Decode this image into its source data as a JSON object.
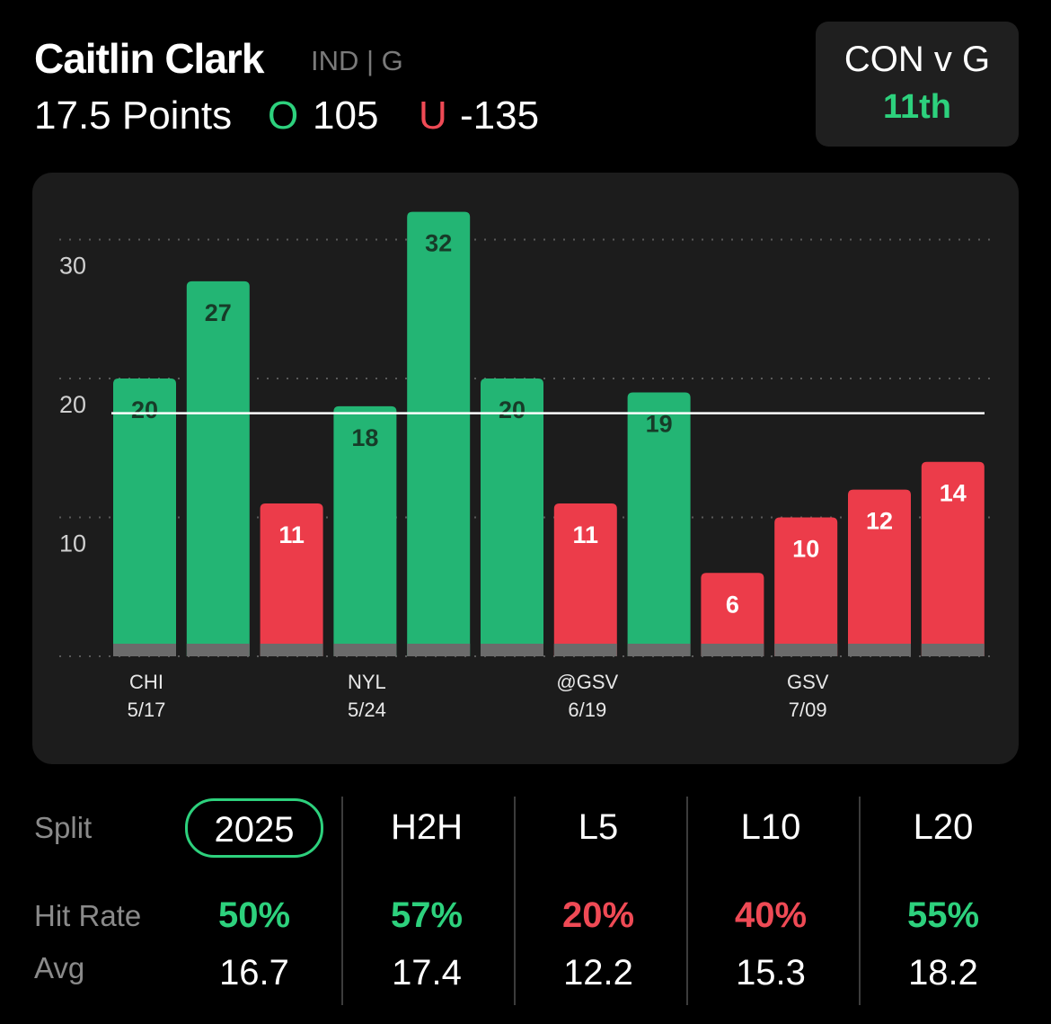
{
  "header": {
    "player_name": "Caitlin Clark",
    "team_position": "IND | G",
    "prop_line": "17.5 Points",
    "over_label": "O",
    "over_odds": "105",
    "under_label": "U",
    "under_odds": "-135"
  },
  "matchup": {
    "title": "CON v G",
    "rank": "11th",
    "rank_color": "#2dd17d"
  },
  "colors": {
    "hit": "#23b574",
    "miss": "#ec3c4a",
    "background": "#000000",
    "card": "#1c1c1c"
  },
  "chart_data": {
    "type": "bar",
    "categories": [
      "CHI 5/17",
      "",
      "",
      "NYL 5/24",
      "",
      "",
      "@GSV 6/19",
      "",
      "",
      "GSV 7/09",
      "",
      ""
    ],
    "x_tick_labels": [
      {
        "index": 0,
        "team": "CHI",
        "date": "5/17"
      },
      {
        "index": 3,
        "team": "NYL",
        "date": "5/24"
      },
      {
        "index": 6,
        "team": "@GSV",
        "date": "6/19"
      },
      {
        "index": 9,
        "team": "GSV",
        "date": "7/09"
      }
    ],
    "values": [
      20,
      27,
      11,
      18,
      32,
      20,
      11,
      19,
      6,
      10,
      12,
      14
    ],
    "hit": [
      true,
      true,
      false,
      true,
      true,
      true,
      false,
      true,
      false,
      false,
      false,
      false
    ],
    "y_ticks": [
      10,
      20,
      30
    ],
    "ylim": [
      0,
      32
    ],
    "reference_line": 17.5,
    "grid": true
  },
  "splits": {
    "split_label": "Split",
    "hit_rate_label": "Hit Rate",
    "avg_label": "Avg",
    "columns": [
      {
        "name": "2025",
        "hit_rate": "50%",
        "avg": "16.7",
        "active": true,
        "color": "#2dd17d"
      },
      {
        "name": "H2H",
        "hit_rate": "57%",
        "avg": "17.4",
        "active": false,
        "color": "#2dd17d"
      },
      {
        "name": "L5",
        "hit_rate": "20%",
        "avg": "12.2",
        "active": false,
        "color": "#ef4a55"
      },
      {
        "name": "L10",
        "hit_rate": "40%",
        "avg": "15.3",
        "active": false,
        "color": "#ef4a55"
      },
      {
        "name": "L20",
        "hit_rate": "55%",
        "avg": "18.2",
        "active": false,
        "color": "#2dd17d"
      }
    ]
  }
}
